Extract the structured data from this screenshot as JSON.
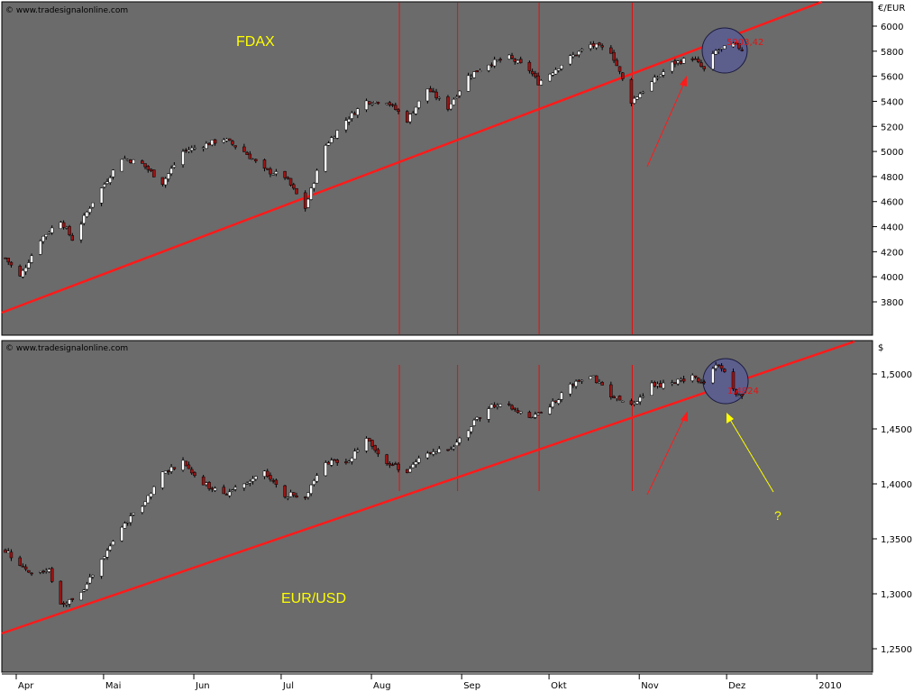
{
  "watermark": "© www.tradesignalonline.com",
  "colors": {
    "panel_bg": "#6b6b6b",
    "candle_up": "#ffffff",
    "candle_down": "#9c1414",
    "wick": "#000000",
    "trendline": "#ff1a1a",
    "vertical_lines": "#e01010",
    "circle_fill": "#5c5e8c",
    "label_text": "#ffff00",
    "question_arrow": "#ffff00"
  },
  "x_axis": {
    "labels": [
      "Apr",
      "Mai",
      "Jun",
      "Jul",
      "Aug",
      "Sep",
      "Okt",
      "Nov",
      "Dez",
      "2010"
    ]
  },
  "chart_data": [
    {
      "type": "candlestick",
      "title": "FDAX",
      "currency_label": "€/EUR",
      "y_ticks": [
        "6000",
        "5800",
        "5600",
        "5400",
        "5200",
        "5000",
        "4800",
        "4600",
        "4400",
        "4200",
        "4000",
        "3800"
      ],
      "ylim": [
        3600,
        6150
      ],
      "last_price": "5903,42",
      "grid": false,
      "series": {
        "anchors": [
          [
            "Apr 1",
            4150
          ],
          [
            "Apr 6",
            4000
          ],
          [
            "Apr 13",
            4300
          ],
          [
            "Apr 20",
            4450
          ],
          [
            "Apr 24",
            4300
          ],
          [
            "May 1",
            4600
          ],
          [
            "May 11",
            4950
          ],
          [
            "May 18",
            4900
          ],
          [
            "May 25",
            4750
          ],
          [
            "Jun 1",
            5000
          ],
          [
            "Jun 8",
            5050
          ],
          [
            "Jun 15",
            5100
          ],
          [
            "Jun 22",
            5000
          ],
          [
            "Jun 29",
            4850
          ],
          [
            "Jul 6",
            4800
          ],
          [
            "Jul 13",
            4550
          ],
          [
            "Jul 20",
            5050
          ],
          [
            "Jul 27",
            5250
          ],
          [
            "Aug 3",
            5400
          ],
          [
            "Aug 10",
            5400
          ],
          [
            "Aug 17",
            5250
          ],
          [
            "Aug 24",
            5500
          ],
          [
            "Aug 31",
            5350
          ],
          [
            "Sep 7",
            5600
          ],
          [
            "Sep 14",
            5700
          ],
          [
            "Sep 21",
            5750
          ],
          [
            "Sep 28",
            5650
          ],
          [
            "Oct 1",
            5550
          ],
          [
            "Oct 12",
            5750
          ],
          [
            "Oct 19",
            5850
          ],
          [
            "Oct 26",
            5800
          ],
          [
            "Nov 2",
            5400
          ],
          [
            "Nov 9",
            5550
          ],
          [
            "Nov 16",
            5700
          ],
          [
            "Nov 23",
            5750
          ],
          [
            "Nov 27",
            5650
          ],
          [
            "Dec 1",
            5800
          ],
          [
            "Dec 7",
            5850
          ],
          [
            "Dec 10",
            5820
          ]
        ]
      }
    },
    {
      "type": "candlestick",
      "title": "EUR/USD",
      "currency_label": "$",
      "y_ticks": [
        "1,5000",
        "1,4500",
        "1,4000",
        "1,3500",
        "1,3000",
        "1,2500"
      ],
      "ylim": [
        1.235,
        1.53
      ],
      "last_price": "1,4824",
      "grid": false,
      "series": {
        "anchors": [
          [
            "Apr 1",
            1.34
          ],
          [
            "Apr 9",
            1.32
          ],
          [
            "Apr 16",
            1.32
          ],
          [
            "Apr 20",
            1.29
          ],
          [
            "Apr 27",
            1.3
          ],
          [
            "May 4",
            1.33
          ],
          [
            "May 11",
            1.36
          ],
          [
            "May 18",
            1.38
          ],
          [
            "May 25",
            1.41
          ],
          [
            "Jun 1",
            1.42
          ],
          [
            "Jun 8",
            1.4
          ],
          [
            "Jun 15",
            1.39
          ],
          [
            "Jun 22",
            1.4
          ],
          [
            "Jun 29",
            1.41
          ],
          [
            "Jul 6",
            1.39
          ],
          [
            "Jul 13",
            1.39
          ],
          [
            "Jul 20",
            1.42
          ],
          [
            "Jul 27",
            1.42
          ],
          [
            "Aug 3",
            1.44
          ],
          [
            "Aug 10",
            1.42
          ],
          [
            "Aug 17",
            1.41
          ],
          [
            "Aug 24",
            1.43
          ],
          [
            "Aug 31",
            1.43
          ],
          [
            "Sep 7",
            1.45
          ],
          [
            "Sep 14",
            1.47
          ],
          [
            "Sep 21",
            1.47
          ],
          [
            "Sep 28",
            1.46
          ],
          [
            "Oct 5",
            1.47
          ],
          [
            "Oct 12",
            1.49
          ],
          [
            "Oct 19",
            1.5
          ],
          [
            "Oct 26",
            1.48
          ],
          [
            "Nov 2",
            1.47
          ],
          [
            "Nov 9",
            1.49
          ],
          [
            "Nov 16",
            1.49
          ],
          [
            "Nov 23",
            1.5
          ],
          [
            "Nov 27",
            1.49
          ],
          [
            "Dec 1",
            1.51
          ],
          [
            "Dec 4",
            1.5
          ],
          [
            "Dec 8",
            1.48
          ],
          [
            "Dec 10",
            1.48
          ]
        ]
      }
    }
  ],
  "annotations": {
    "question_mark": "?"
  }
}
